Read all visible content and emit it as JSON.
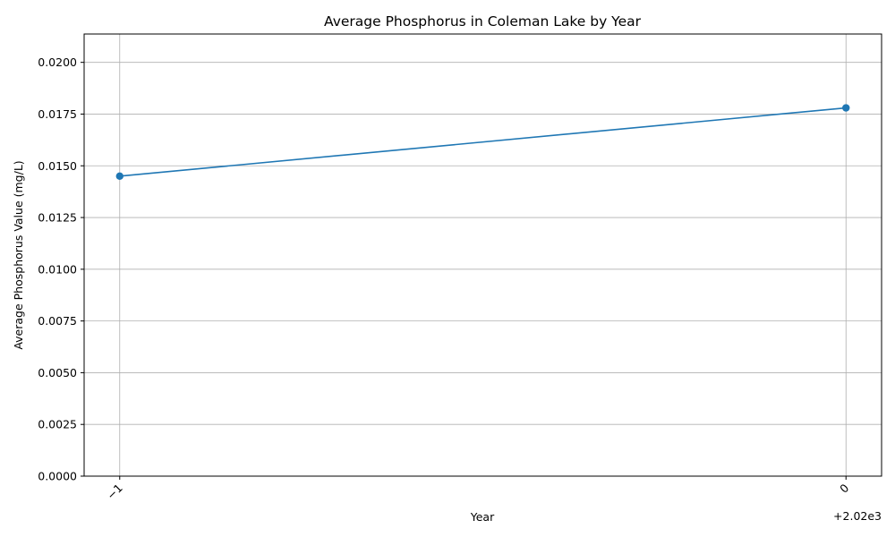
{
  "chart_data": {
    "type": "line",
    "title": "Average Phosphorus in Coleman Lake by Year",
    "xlabel": "Year",
    "ylabel": "Average Phosphorus Value (mg/L)",
    "x_offset_label": "+2.02e3",
    "x": [
      2019,
      2020
    ],
    "x_tick_labels": [
      "−1",
      "0"
    ],
    "x_ticks": [
      2019,
      2020
    ],
    "y_tick_labels": [
      "0.0000",
      "0.0025",
      "0.0050",
      "0.0075",
      "0.0100",
      "0.0125",
      "0.0150",
      "0.0175",
      "0.0200"
    ],
    "y_ticks": [
      0,
      0.0025,
      0.005,
      0.0075,
      0.01,
      0.0125,
      0.015,
      0.0175,
      0.02
    ],
    "xlim": [
      2018.951,
      2020.049
    ],
    "ylim": [
      0,
      0.02137
    ],
    "grid": true,
    "series": [
      {
        "values": [
          0.0145,
          0.0178
        ],
        "color": "#1f77b4",
        "marker": "circle"
      }
    ]
  }
}
